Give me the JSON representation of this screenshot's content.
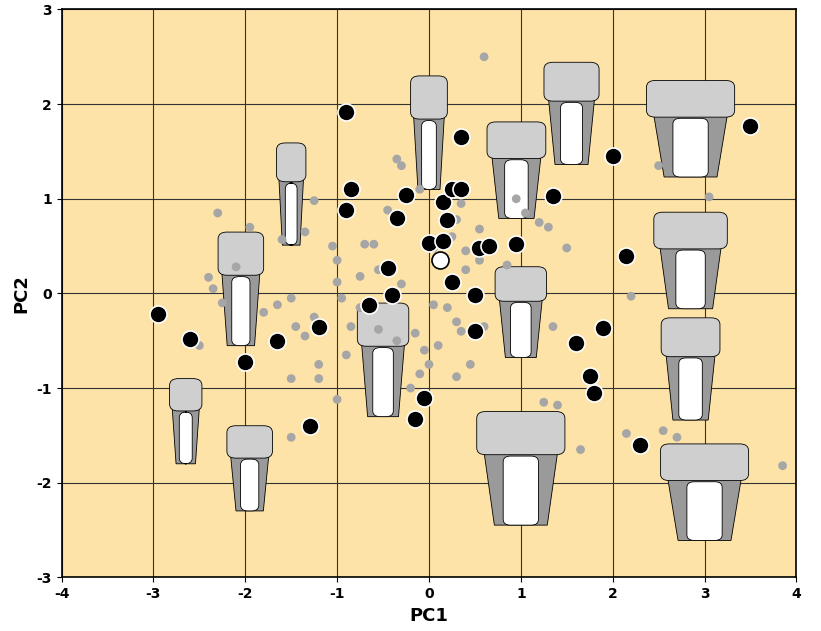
{
  "chart_data": {
    "type": "scatter",
    "xlabel": "PC1",
    "ylabel": "PC2",
    "xlim": [
      -4,
      4
    ],
    "ylim": [
      -3,
      3
    ],
    "xticks": [
      -4,
      -3,
      -2,
      -1,
      0,
      1,
      2,
      3,
      4
    ],
    "yticks": [
      -3,
      -2,
      -1,
      0,
      1,
      2,
      3
    ],
    "grid": true,
    "series": [
      {
        "color": "#a6a6a6",
        "marker": "o",
        "x": [
          0.6,
          2.5,
          3.05,
          3.85,
          2.2,
          2.55,
          2.7,
          2.15,
          1.65,
          1.25,
          1.4,
          1.35,
          1.2,
          1.3,
          1.5,
          1.05,
          0.95,
          0.55,
          0.4,
          0.35,
          0.3,
          0.2,
          0.45,
          0.3,
          0.1,
          -0.05,
          -0.15,
          0.0,
          -0.1,
          -0.2,
          -0.35,
          -0.55,
          -0.75,
          -0.85,
          -0.9,
          -1.0,
          -1.2,
          -1.2,
          -1.35,
          -1.45,
          -1.25,
          -1.5,
          -1.65,
          -1.8,
          -2.25,
          -2.35,
          -2.4,
          -2.1,
          -2.3,
          -1.95,
          -1.6,
          -1.35,
          -1.25,
          -1.05,
          -1.0,
          -1.0,
          -0.95,
          -0.7,
          -0.6,
          -0.75,
          -0.55,
          -0.45,
          -0.35,
          -0.3,
          -0.1,
          0.05,
          0.25,
          0.3,
          0.4,
          0.35,
          0.55,
          0.85,
          0.05,
          -1.5,
          -2.5,
          -1.5,
          -0.3,
          0.6
        ],
        "y": [
          2.5,
          1.35,
          1.02,
          -1.82,
          -0.03,
          -1.45,
          -1.52,
          -1.48,
          -1.65,
          -1.15,
          -1.18,
          -0.35,
          0.75,
          0.7,
          0.48,
          0.85,
          1.0,
          0.35,
          0.25,
          -0.4,
          -0.3,
          -0.15,
          -0.75,
          -0.88,
          -0.55,
          -0.6,
          -0.42,
          -0.75,
          -0.85,
          -1.0,
          -0.5,
          -0.38,
          -0.15,
          -0.35,
          -0.65,
          -1.12,
          -0.9,
          -0.75,
          -0.45,
          -0.35,
          -0.25,
          -0.05,
          -0.12,
          -0.2,
          -0.1,
          0.05,
          0.17,
          0.28,
          0.85,
          0.7,
          0.57,
          0.65,
          0.98,
          0.5,
          0.35,
          0.12,
          -0.05,
          0.52,
          0.52,
          0.18,
          0.25,
          0.88,
          1.42,
          1.35,
          1.1,
          0.48,
          0.6,
          0.78,
          0.45,
          0.95,
          0.68,
          0.3,
          -0.12,
          -1.52,
          -0.55,
          -0.9,
          0.1,
          -0.35
        ]
      },
      {
        "color": "#000000",
        "marker": "o",
        "x": [
          -2.95,
          -2.6,
          -2.0,
          -1.65,
          -1.3,
          -1.2,
          -0.9,
          -0.85,
          -0.9,
          -0.65,
          -0.45,
          -0.4,
          -0.35,
          -0.25,
          -0.15,
          -0.05,
          0.0,
          0.15,
          0.2,
          0.15,
          0.25,
          0.35,
          0.35,
          0.25,
          0.5,
          0.5,
          0.55,
          0.65,
          0.95,
          1.35,
          1.6,
          1.75,
          1.8,
          2.0,
          2.15,
          1.9,
          2.3,
          3.5
        ],
        "y": [
          -0.22,
          -0.48,
          -0.72,
          -0.5,
          -1.4,
          -0.35,
          1.92,
          1.1,
          0.88,
          -0.12,
          0.27,
          -0.02,
          0.8,
          1.04,
          -1.33,
          -1.1,
          0.53,
          0.97,
          0.78,
          0.55,
          1.1,
          1.1,
          1.65,
          0.12,
          -0.02,
          -0.4,
          0.48,
          0.5,
          0.52,
          1.03,
          -0.52,
          -0.87,
          -1.05,
          1.45,
          0.4,
          -0.37,
          -1.6,
          1.77
        ]
      },
      {
        "color": "#ffffff",
        "marker": "o",
        "x": [
          0.12
        ],
        "y": [
          0.35
        ]
      }
    ]
  }
}
